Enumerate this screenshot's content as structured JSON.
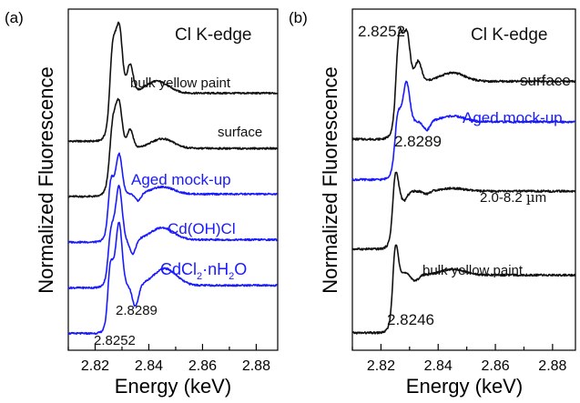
{
  "colors": {
    "black": "#111111",
    "blue": "#1a1aff"
  },
  "chart_data": [
    {
      "type": "line",
      "panel_label": "(a)",
      "title": "Cl K-edge",
      "xlabel": "Energy (keV)",
      "ylabel": "Normalized Fluorescence",
      "xlim": [
        2.81,
        2.888
      ],
      "xticks": [
        "2.82",
        "2.84",
        "2.86",
        "2.88"
      ],
      "series": [
        {
          "name": "bulk yellow paint",
          "color": "black",
          "offset": 4.0,
          "edge": 2.8252,
          "peaks": [
            [
              2.8265,
              2.2
            ],
            [
              2.829,
              2.35
            ],
            [
              2.833,
              1.6
            ],
            [
              2.843,
              1.25
            ]
          ],
          "post": 1.0
        },
        {
          "name": "surface",
          "color": "black",
          "offset": 2.85,
          "edge": 2.8252,
          "peaks": [
            [
              2.8265,
              1.75
            ],
            [
              2.8289,
              1.95
            ],
            [
              2.833,
              1.4
            ],
            [
              2.845,
              1.2
            ]
          ],
          "post": 1.0
        },
        {
          "name": "Aged mock-up",
          "color": "blue",
          "offset": 1.9,
          "edge": 2.8252,
          "peaks": [
            [
              2.8255,
              1.75
            ],
            [
              2.8289,
              1.85
            ],
            [
              2.836,
              0.85
            ],
            [
              2.845,
              1.15
            ]
          ],
          "post": 1.0
        },
        {
          "name": "Cd(OH)Cl",
          "color": "blue",
          "offset": 0.95,
          "edge": 2.8252,
          "peaks": [
            [
              2.8255,
              1.6
            ],
            [
              2.827,
              1.1
            ],
            [
              2.8289,
              2.1
            ],
            [
              2.834,
              0.7
            ],
            [
              2.845,
              1.25
            ]
          ],
          "post": 1.0
        },
        {
          "name": "CdCl2·nH2O",
          "color": "blue",
          "offset": 0.0,
          "edge": 2.8252,
          "peaks": [
            [
              2.8252,
              2.05
            ],
            [
              2.827,
              1.1
            ],
            [
              2.8289,
              2.3
            ],
            [
              2.835,
              0.55
            ],
            [
              2.846,
              1.35
            ]
          ],
          "post": 1.0
        }
      ],
      "annotations": [
        "2.8252",
        "2.8289"
      ]
    },
    {
      "type": "line",
      "panel_label": "(b)",
      "title": "Cl K-edge",
      "xlabel": "Energy (keV)",
      "ylabel": "Normalized Fluorescence",
      "xlim": [
        2.81,
        2.888
      ],
      "xticks": [
        "2.82",
        "2.84",
        "2.86",
        "2.88"
      ],
      "series": [
        {
          "name": "surface",
          "color": "black",
          "offset": 3.35,
          "edge": 2.8252,
          "peaks": [
            [
              2.8262,
              2.1
            ],
            [
              2.829,
              1.85
            ],
            [
              2.833,
              1.35
            ],
            [
              2.845,
              1.15
            ]
          ],
          "post": 1.0
        },
        {
          "name": "Aged mock-up",
          "color": "blue",
          "offset": 2.65,
          "edge": 2.8252,
          "peaks": [
            [
              2.8255,
              1.55
            ],
            [
              2.8289,
              1.7
            ],
            [
              2.836,
              0.85
            ],
            [
              2.845,
              1.1
            ]
          ],
          "post": 1.0
        },
        {
          "name": "2.0-8.2 µm",
          "color": "black",
          "offset": 1.45,
          "edge": 2.8246,
          "peaks": [
            [
              2.8246,
              1.9
            ],
            [
              2.828,
              0.85
            ],
            [
              2.836,
              0.95
            ],
            [
              2.845,
              1.05
            ]
          ],
          "post": 1.0
        },
        {
          "name": "bulk yellow paint",
          "color": "black",
          "offset": 0.0,
          "edge": 2.8246,
          "peaks": [
            [
              2.8246,
              2.15
            ],
            [
              2.828,
              1.05
            ],
            [
              2.832,
              0.9
            ],
            [
              2.845,
              1.1
            ]
          ],
          "post": 1.0
        }
      ],
      "annotations": [
        "2.8252",
        "2.8289",
        "2.8246"
      ]
    }
  ],
  "text": {
    "a_cd_oh": "Cd(OH)Cl",
    "a_cdcl_main": "CdCl",
    "a_cdcl_sub2": "2",
    "a_cdcl_dot": "·nH",
    "a_cdcl_h2": "2",
    "a_cdcl_o": "O",
    "b_range": "2.0-8.2 ",
    "b_mu": "µ",
    "b_m": "m"
  }
}
